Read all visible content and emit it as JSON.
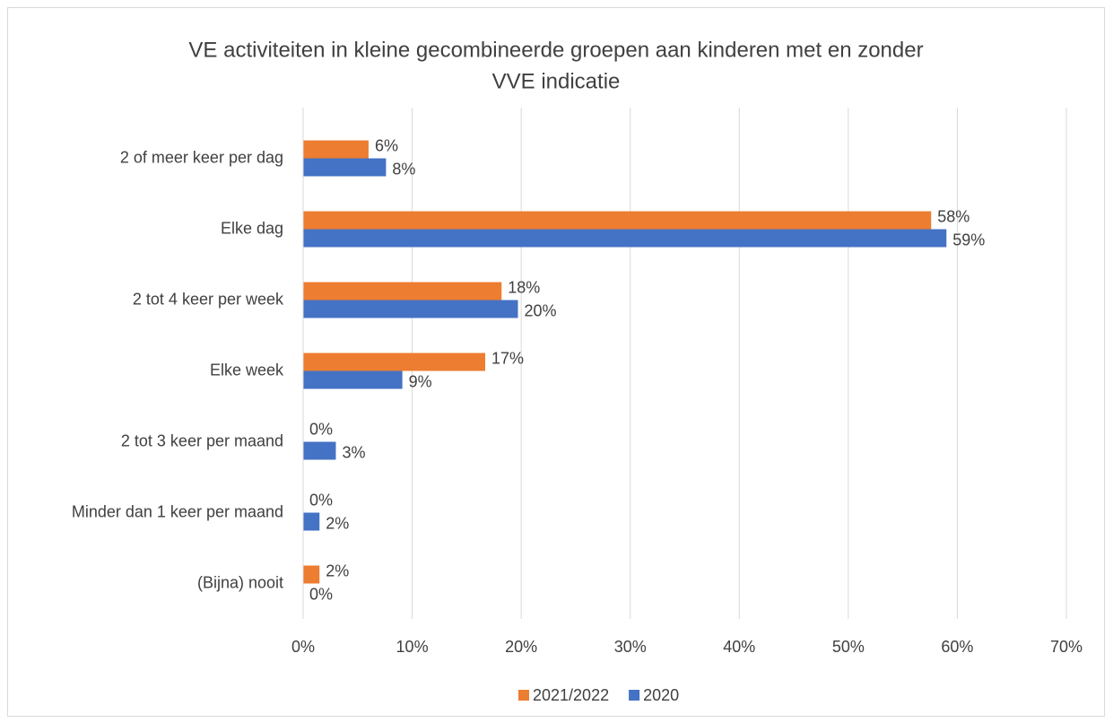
{
  "chart_data": {
    "type": "barh",
    "title": [
      "VE activiteiten in kleine gecombineerde groepen aan kinderen met en zonder",
      "VVE indicatie"
    ],
    "categories": [
      "2 of meer keer per dag",
      "Elke dag",
      "2 tot 4 keer per week",
      "Elke week",
      "2 tot 3 keer per maand",
      "Minder dan 1 keer per maand",
      "(Bijna) nooit"
    ],
    "series": [
      {
        "name": "2021/2022",
        "color": "#ed7d31",
        "values": [
          6.0,
          57.6,
          18.2,
          16.7,
          0,
          0,
          1.5
        ],
        "value_labels": [
          "6%",
          "58%",
          "18%",
          "17%",
          "0%",
          "0%",
          "2%"
        ]
      },
      {
        "name": "2020",
        "color": "#4472c4",
        "values": [
          7.6,
          59.0,
          19.7,
          9.1,
          3.0,
          1.5,
          0
        ],
        "value_labels": [
          "8%",
          "59%",
          "20%",
          "9%",
          "3%",
          "2%",
          "0%"
        ]
      }
    ],
    "xlim": [
      0,
      70
    ],
    "xticks": [
      {
        "value": 0,
        "label": "0%"
      },
      {
        "value": 10,
        "label": "10%"
      },
      {
        "value": 20,
        "label": "20%"
      },
      {
        "value": 30,
        "label": "30%"
      },
      {
        "value": 40,
        "label": "40%"
      },
      {
        "value": 50,
        "label": "50%"
      },
      {
        "value": 60,
        "label": "60%"
      },
      {
        "value": 70,
        "label": "70%"
      }
    ],
    "grid": true,
    "legend": "bottom"
  }
}
